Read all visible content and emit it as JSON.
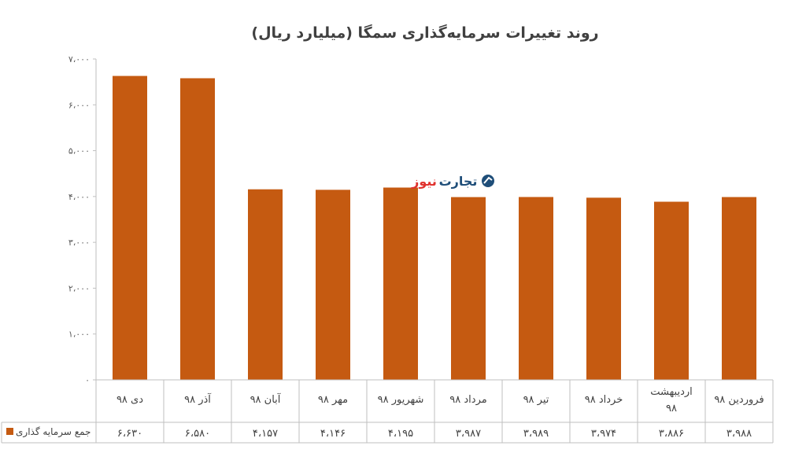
{
  "chart_data": {
    "type": "bar",
    "title": "روند تغییرات سرمایه‌گذاری سمگا (میلیارد ریال)",
    "categories": [
      "فروردین ۹۸",
      "اردیبهشت ۹۸",
      "خرداد ۹۸",
      "تیر ۹۸",
      "مرداد ۹۸",
      "شهریور ۹۸",
      "مهر ۹۸",
      "آبان ۹۸",
      "آذر ۹۸",
      "دی ۹۸"
    ],
    "series": [
      {
        "name": "جمع سرمایه گذاری",
        "values": [
          3988,
          3886,
          3974,
          3989,
          3987,
          4195,
          4146,
          4157,
          6580,
          6630
        ],
        "value_labels": [
          "۳،۹۸۸",
          "۳،۸۸۶",
          "۳،۹۷۴",
          "۳،۹۸۹",
          "۳،۹۸۷",
          "۴،۱۹۵",
          "۴،۱۴۶",
          "۴،۱۵۷",
          "۶،۵۸۰",
          "۶،۶۳۰"
        ],
        "color": "#c55a11"
      }
    ],
    "ylim": [
      0,
      7000
    ],
    "yticks": [
      0,
      1000,
      2000,
      3000,
      4000,
      5000,
      6000,
      7000
    ],
    "ytick_labels": [
      "۰",
      "۱،۰۰۰",
      "۲،۰۰۰",
      "۳،۰۰۰",
      "۴،۰۰۰",
      "۵،۰۰۰",
      "۶،۰۰۰",
      "۷،۰۰۰"
    ],
    "grid": false,
    "legend": "bottom-left data table"
  },
  "watermark": {
    "part_a": "نیوز",
    "part_b": "تجارت",
    "logo_icon": "tejarat-news-logo-icon",
    "color_a": "#e0322e",
    "color_b": "#1f4e79"
  },
  "colors": {
    "bar": "#c55a11",
    "axis": "#bfbfbf",
    "text": "#404040"
  }
}
